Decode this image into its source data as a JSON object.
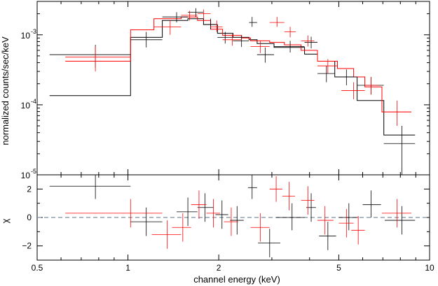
{
  "chart_data": [
    {
      "type": "step+errorbar",
      "panel": "spectrum",
      "xlabel": "channel energy (keV)",
      "ylabel": "normalized counts/sec/keV",
      "xscale": "log",
      "yscale": "log",
      "xlim": [
        0.5,
        10
      ],
      "ylim": [
        1e-05,
        0.003
      ],
      "y_ticks": [
        {
          "base": "10",
          "exp": "-5",
          "value": 1e-05
        },
        {
          "base": "10",
          "exp": "-4",
          "value": 0.0001
        },
        {
          "base": "10",
          "exp": "-3",
          "value": 0.001
        }
      ],
      "series": [
        {
          "color": "#000000",
          "data": [
            {
              "x": 0.78,
              "xlo": 0.55,
              "xhi": 1.02,
              "y": 0.00052,
              "ylo": 0.00034,
              "yhi": 0.00072
            },
            {
              "x": 1.15,
              "xlo": 1.02,
              "xhi": 1.3,
              "y": 0.00085,
              "ylo": 0.00066,
              "yhi": 0.0011
            },
            {
              "x": 1.45,
              "xlo": 1.3,
              "xhi": 1.58,
              "y": 0.0018,
              "ylo": 0.0015,
              "yhi": 0.0021
            },
            {
              "x": 1.68,
              "xlo": 1.58,
              "xhi": 1.78,
              "y": 0.0021,
              "ylo": 0.0018,
              "yhi": 0.0024
            },
            {
              "x": 1.88,
              "xlo": 1.78,
              "xhi": 1.98,
              "y": 0.0014,
              "ylo": 0.0012,
              "yhi": 0.0017
            },
            {
              "x": 2.1,
              "xlo": 1.98,
              "xhi": 2.23,
              "y": 0.00092,
              "ylo": 0.00075,
              "yhi": 0.0011
            },
            {
              "x": 2.38,
              "xlo": 2.23,
              "xhi": 2.52,
              "y": 0.00082,
              "ylo": 0.00067,
              "yhi": 0.00098
            },
            {
              "x": 2.58,
              "xlo": 2.52,
              "xhi": 2.68,
              "y": 0.0015,
              "ylo": 0.0013,
              "yhi": 0.0018
            },
            {
              "x": 2.85,
              "xlo": 2.68,
              "xhi": 3.05,
              "y": 0.00052,
              "ylo": 0.0004,
              "yhi": 0.00066
            },
            {
              "x": 3.45,
              "xlo": 3.05,
              "xhi": 3.85,
              "y": 0.00068,
              "ylo": 0.00056,
              "yhi": 0.00082
            },
            {
              "x": 4.05,
              "xlo": 3.85,
              "xhi": 4.25,
              "y": 0.00078,
              "ylo": 0.00064,
              "yhi": 0.00094
            },
            {
              "x": 4.55,
              "xlo": 4.25,
              "xhi": 4.85,
              "y": 0.00028,
              "ylo": 0.00021,
              "yhi": 0.00036
            },
            {
              "x": 5.3,
              "xlo": 4.85,
              "xhi": 5.75,
              "y": 0.00025,
              "ylo": 0.00019,
              "yhi": 0.00032
            },
            {
              "x": 6.4,
              "xlo": 5.75,
              "xhi": 7.05,
              "y": 0.00019,
              "ylo": 0.00014,
              "yhi": 0.00025
            },
            {
              "x": 8.1,
              "xlo": 7.05,
              "xhi": 8.95,
              "y": 2.8e-05,
              "ylo": 1e-05,
              "yhi": 5e-05
            }
          ],
          "model_steps": [
            {
              "xlo": 0.55,
              "xhi": 1.02,
              "y": 0.000135
            },
            {
              "xlo": 1.02,
              "xhi": 1.3,
              "y": 0.00092
            },
            {
              "xlo": 1.3,
              "xhi": 1.58,
              "y": 0.0016
            },
            {
              "xlo": 1.58,
              "xhi": 1.78,
              "y": 0.0017
            },
            {
              "xlo": 1.78,
              "xhi": 1.98,
              "y": 0.0014
            },
            {
              "xlo": 1.98,
              "xhi": 2.23,
              "y": 0.00105
            },
            {
              "xlo": 2.23,
              "xhi": 2.52,
              "y": 0.00092
            },
            {
              "xlo": 2.52,
              "xhi": 2.68,
              "y": 0.00085
            },
            {
              "xlo": 2.68,
              "xhi": 3.05,
              "y": 0.00075
            },
            {
              "xlo": 3.05,
              "xhi": 3.85,
              "y": 0.00066
            },
            {
              "xlo": 3.85,
              "xhi": 4.25,
              "y": 0.00053
            },
            {
              "xlo": 4.25,
              "xhi": 4.85,
              "y": 0.00042
            },
            {
              "xlo": 4.85,
              "xhi": 5.75,
              "y": 0.00025
            },
            {
              "xlo": 5.75,
              "xhi": 7.05,
              "y": 0.000115
            },
            {
              "xlo": 7.05,
              "xhi": 8.95,
              "y": 3.7e-05
            }
          ]
        },
        {
          "color": "#ff0000",
          "data": [
            {
              "x": 0.78,
              "xlo": 0.62,
              "xhi": 1.02,
              "y": 0.00048,
              "ylo": 0.0003,
              "yhi": 0.00068
            },
            {
              "x": 1.38,
              "xlo": 1.22,
              "xhi": 1.5,
              "y": 0.0013,
              "ylo": 0.001,
              "yhi": 0.0016
            },
            {
              "x": 1.6,
              "xlo": 1.5,
              "xhi": 1.7,
              "y": 0.0019,
              "ylo": 0.0016,
              "yhi": 0.0022
            },
            {
              "x": 1.78,
              "xlo": 1.7,
              "xhi": 1.88,
              "y": 0.002,
              "ylo": 0.0017,
              "yhi": 0.0023
            },
            {
              "x": 1.97,
              "xlo": 1.88,
              "xhi": 2.06,
              "y": 0.0013,
              "ylo": 0.0011,
              "yhi": 0.0016
            },
            {
              "x": 2.22,
              "xlo": 2.06,
              "xhi": 2.38,
              "y": 0.00085,
              "ylo": 0.0007,
              "yhi": 0.00102
            },
            {
              "x": 2.75,
              "xlo": 2.55,
              "xhi": 2.95,
              "y": 0.00068,
              "ylo": 0.00055,
              "yhi": 0.00083
            },
            {
              "x": 3.12,
              "xlo": 2.95,
              "xhi": 3.3,
              "y": 0.0015,
              "ylo": 0.0013,
              "yhi": 0.0018
            },
            {
              "x": 3.45,
              "xlo": 3.3,
              "xhi": 3.6,
              "y": 0.0011,
              "ylo": 0.00092,
              "yhi": 0.0013
            },
            {
              "x": 3.95,
              "xlo": 3.75,
              "xhi": 4.15,
              "y": 0.00082,
              "ylo": 0.00068,
              "yhi": 0.00098
            },
            {
              "x": 4.6,
              "xlo": 4.25,
              "xhi": 4.95,
              "y": 0.00036,
              "ylo": 0.00028,
              "yhi": 0.00045
            },
            {
              "x": 5.6,
              "xlo": 5.1,
              "xhi": 6.1,
              "y": 0.00016,
              "ylo": 0.00012,
              "yhi": 0.00021
            },
            {
              "x": 6.4,
              "xlo": 6.1,
              "xhi": 6.75,
              "y": 0.00019,
              "ylo": 0.00014,
              "yhi": 0.00025
            },
            {
              "x": 7.8,
              "xlo": 6.95,
              "xhi": 8.7,
              "y": 7.9e-05,
              "ylo": 5e-05,
              "yhi": 0.000115
            }
          ],
          "model_steps": [
            {
              "xlo": 0.62,
              "xhi": 1.02,
              "y": 0.00042
            },
            {
              "xlo": 1.02,
              "xhi": 1.22,
              "y": 0.00118
            },
            {
              "xlo": 1.22,
              "xhi": 1.5,
              "y": 0.0017
            },
            {
              "xlo": 1.5,
              "xhi": 1.7,
              "y": 0.0018
            },
            {
              "xlo": 1.7,
              "xhi": 1.88,
              "y": 0.0016
            },
            {
              "xlo": 1.88,
              "xhi": 2.06,
              "y": 0.0012
            },
            {
              "xlo": 2.06,
              "xhi": 2.38,
              "y": 0.00098
            },
            {
              "xlo": 2.38,
              "xhi": 2.55,
              "y": 0.0009
            },
            {
              "xlo": 2.55,
              "xhi": 2.95,
              "y": 0.00082
            },
            {
              "xlo": 2.95,
              "xhi": 3.3,
              "y": 0.00078
            },
            {
              "xlo": 3.3,
              "xhi": 3.75,
              "y": 0.00072
            },
            {
              "xlo": 3.75,
              "xhi": 4.25,
              "y": 0.0006
            },
            {
              "xlo": 4.25,
              "xhi": 4.95,
              "y": 0.00042
            },
            {
              "xlo": 4.95,
              "xhi": 5.6,
              "y": 0.00033
            },
            {
              "xlo": 5.6,
              "xhi": 6.1,
              "y": 0.00025
            },
            {
              "xlo": 6.1,
              "xhi": 6.95,
              "y": 0.00018
            },
            {
              "xlo": 6.95,
              "xhi": 8.7,
              "y": 7.9e-05
            }
          ]
        }
      ]
    },
    {
      "type": "errorbar",
      "panel": "residuals",
      "xlabel": "channel energy (keV)",
      "ylabel": "χ",
      "xscale": "log",
      "xlim": [
        0.5,
        10
      ],
      "ylim": [
        -3,
        3
      ],
      "x_ticks": [
        "0.5",
        "1",
        "2",
        "5",
        "10"
      ],
      "x_tick_values": [
        0.5,
        1,
        2,
        5,
        10
      ],
      "y_ticks": [
        "−2",
        "0",
        "2"
      ],
      "y_tick_values": [
        -2,
        0,
        2
      ],
      "zero_line": true,
      "series": [
        {
          "color": "#000000",
          "data": [
            {
              "x": 0.78,
              "xlo": 0.55,
              "xhi": 1.02,
              "y": 2.2,
              "ylo": 1.3,
              "yhi": 3.0
            },
            {
              "x": 1.15,
              "xlo": 1.02,
              "xhi": 1.3,
              "y": -0.3,
              "ylo": -1.3,
              "yhi": 0.7
            },
            {
              "x": 1.58,
              "xlo": 1.45,
              "xhi": 1.7,
              "y": 0.4,
              "ylo": -0.6,
              "yhi": 1.4
            },
            {
              "x": 1.8,
              "xlo": 1.7,
              "xhi": 1.92,
              "y": 0.7,
              "ylo": -0.3,
              "yhi": 1.7
            },
            {
              "x": 2.05,
              "xlo": 1.95,
              "xhi": 2.15,
              "y": 0.2,
              "ylo": -0.8,
              "yhi": 1.2
            },
            {
              "x": 2.3,
              "xlo": 2.18,
              "xhi": 2.42,
              "y": -0.2,
              "ylo": -1.2,
              "yhi": 0.8
            },
            {
              "x": 2.58,
              "xlo": 2.5,
              "xhi": 2.68,
              "y": 2.1,
              "ylo": 1.3,
              "yhi": 3.0
            },
            {
              "x": 2.95,
              "xlo": 2.7,
              "xhi": 3.2,
              "y": -1.8,
              "ylo": -2.8,
              "yhi": -0.8
            },
            {
              "x": 3.5,
              "xlo": 3.1,
              "xhi": 3.85,
              "y": 0.0,
              "ylo": -0.9,
              "yhi": 1.0
            },
            {
              "x": 4.05,
              "xlo": 3.9,
              "xhi": 4.2,
              "y": 0.7,
              "ylo": -0.3,
              "yhi": 1.7
            },
            {
              "x": 4.6,
              "xlo": 4.3,
              "xhi": 4.9,
              "y": -1.3,
              "ylo": -2.3,
              "yhi": -0.3
            },
            {
              "x": 5.4,
              "xlo": 5.0,
              "xhi": 5.8,
              "y": 0.0,
              "ylo": -0.9,
              "yhi": 1.0
            },
            {
              "x": 6.4,
              "xlo": 6.0,
              "xhi": 6.9,
              "y": 0.9,
              "ylo": 0.0,
              "yhi": 1.9
            },
            {
              "x": 8.1,
              "xlo": 7.1,
              "xhi": 8.95,
              "y": -0.2,
              "ylo": -1.2,
              "yhi": 0.8
            }
          ]
        },
        {
          "color": "#ff0000",
          "data": [
            {
              "x": 1.02,
              "xlo": 0.62,
              "xhi": 1.3,
              "y": 0.3,
              "ylo": -0.7,
              "yhi": 1.3
            },
            {
              "x": 1.35,
              "xlo": 1.2,
              "xhi": 1.5,
              "y": -1.2,
              "ylo": -2.2,
              "yhi": -0.2
            },
            {
              "x": 1.52,
              "xlo": 1.4,
              "xhi": 1.62,
              "y": -0.7,
              "ylo": -1.7,
              "yhi": 0.3
            },
            {
              "x": 1.72,
              "xlo": 1.62,
              "xhi": 1.82,
              "y": 0.9,
              "ylo": -0.1,
              "yhi": 1.9
            },
            {
              "x": 1.92,
              "xlo": 1.82,
              "xhi": 2.02,
              "y": 0.3,
              "ylo": -0.7,
              "yhi": 1.3
            },
            {
              "x": 2.2,
              "xlo": 2.08,
              "xhi": 2.32,
              "y": -0.3,
              "ylo": -1.3,
              "yhi": 0.7
            },
            {
              "x": 2.75,
              "xlo": 2.55,
              "xhi": 2.95,
              "y": -0.7,
              "ylo": -1.7,
              "yhi": 0.3
            },
            {
              "x": 3.1,
              "xlo": 2.95,
              "xhi": 3.25,
              "y": 2.0,
              "ylo": 1.1,
              "yhi": 2.9
            },
            {
              "x": 3.42,
              "xlo": 3.25,
              "xhi": 3.58,
              "y": 1.5,
              "ylo": 0.5,
              "yhi": 2.5
            },
            {
              "x": 3.95,
              "xlo": 3.75,
              "xhi": 4.15,
              "y": 1.2,
              "ylo": 0.2,
              "yhi": 2.2
            },
            {
              "x": 4.5,
              "xlo": 4.25,
              "xhi": 4.8,
              "y": -0.2,
              "ylo": -1.2,
              "yhi": 0.8
            },
            {
              "x": 5.3,
              "xlo": 5.0,
              "xhi": 5.6,
              "y": -0.4,
              "ylo": -1.4,
              "yhi": 0.6
            },
            {
              "x": 5.8,
              "xlo": 5.5,
              "xhi": 6.1,
              "y": -0.9,
              "ylo": -1.9,
              "yhi": 0.1
            },
            {
              "x": 7.8,
              "xlo": 6.95,
              "xhi": 8.7,
              "y": 0.3,
              "ylo": -0.7,
              "yhi": 1.3
            }
          ]
        }
      ]
    }
  ]
}
